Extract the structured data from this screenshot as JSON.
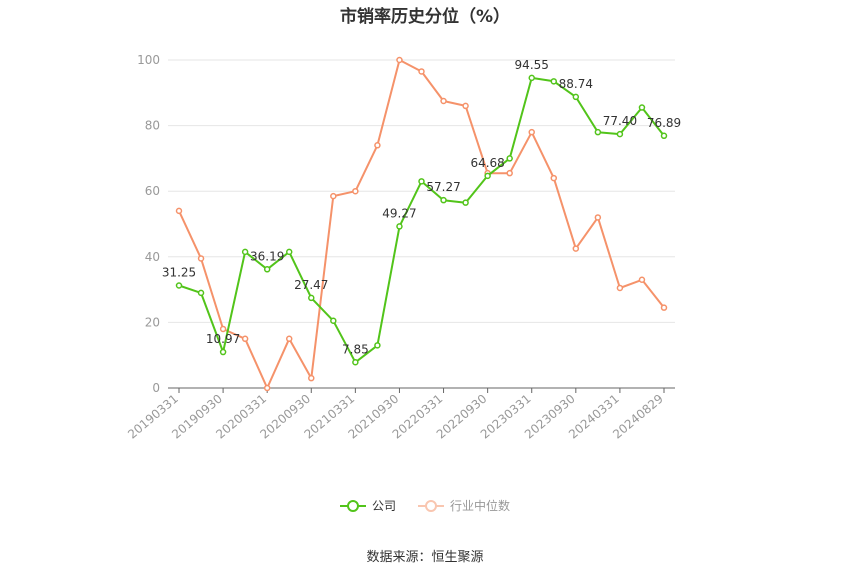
{
  "title": "市销率历史分位（%）",
  "source": "数据来源：恒生聚源",
  "colors": {
    "company": "#52c41a",
    "industry": "#f5926a",
    "grid": "#e6e6e6",
    "axis": "#666666",
    "tick": "#999999"
  },
  "chart_data": {
    "type": "line",
    "ylim": [
      0,
      100
    ],
    "yticks": [
      0,
      20,
      40,
      60,
      80,
      100
    ],
    "x_tick_labels": [
      "20190331",
      "20190930",
      "20200331",
      "20200930",
      "20210331",
      "20210930",
      "20220331",
      "20220930",
      "20230331",
      "20230930",
      "20240331",
      "20240829"
    ],
    "legend_position": "bottom",
    "grid": true,
    "series": [
      {
        "name": "公司",
        "color": "#52c41a",
        "values": [
          31.25,
          29.0,
          10.97,
          41.5,
          36.19,
          41.5,
          27.47,
          20.5,
          7.85,
          13.0,
          49.27,
          63.0,
          57.27,
          56.5,
          64.68,
          70.0,
          94.55,
          93.5,
          88.74,
          78.0,
          77.4,
          85.5,
          76.89
        ],
        "labels": [
          "31.25",
          "",
          "10.97",
          "",
          "36.19",
          "",
          "27.47",
          "",
          "7.85",
          "",
          "49.27",
          "",
          "57.27",
          "",
          "64.68",
          "",
          "94.55",
          "",
          "88.74",
          "",
          "77.40",
          "",
          "76.89"
        ]
      },
      {
        "name": "行业中位数",
        "color": "#f5926a",
        "values": [
          54.0,
          39.5,
          18.0,
          15.0,
          0.0,
          15.0,
          3.0,
          58.5,
          60.0,
          74.0,
          100.0,
          96.5,
          87.5,
          86.0,
          65.5,
          65.5,
          78.0,
          64.0,
          42.5,
          52.0,
          30.5,
          33.0,
          24.5
        ]
      }
    ]
  }
}
